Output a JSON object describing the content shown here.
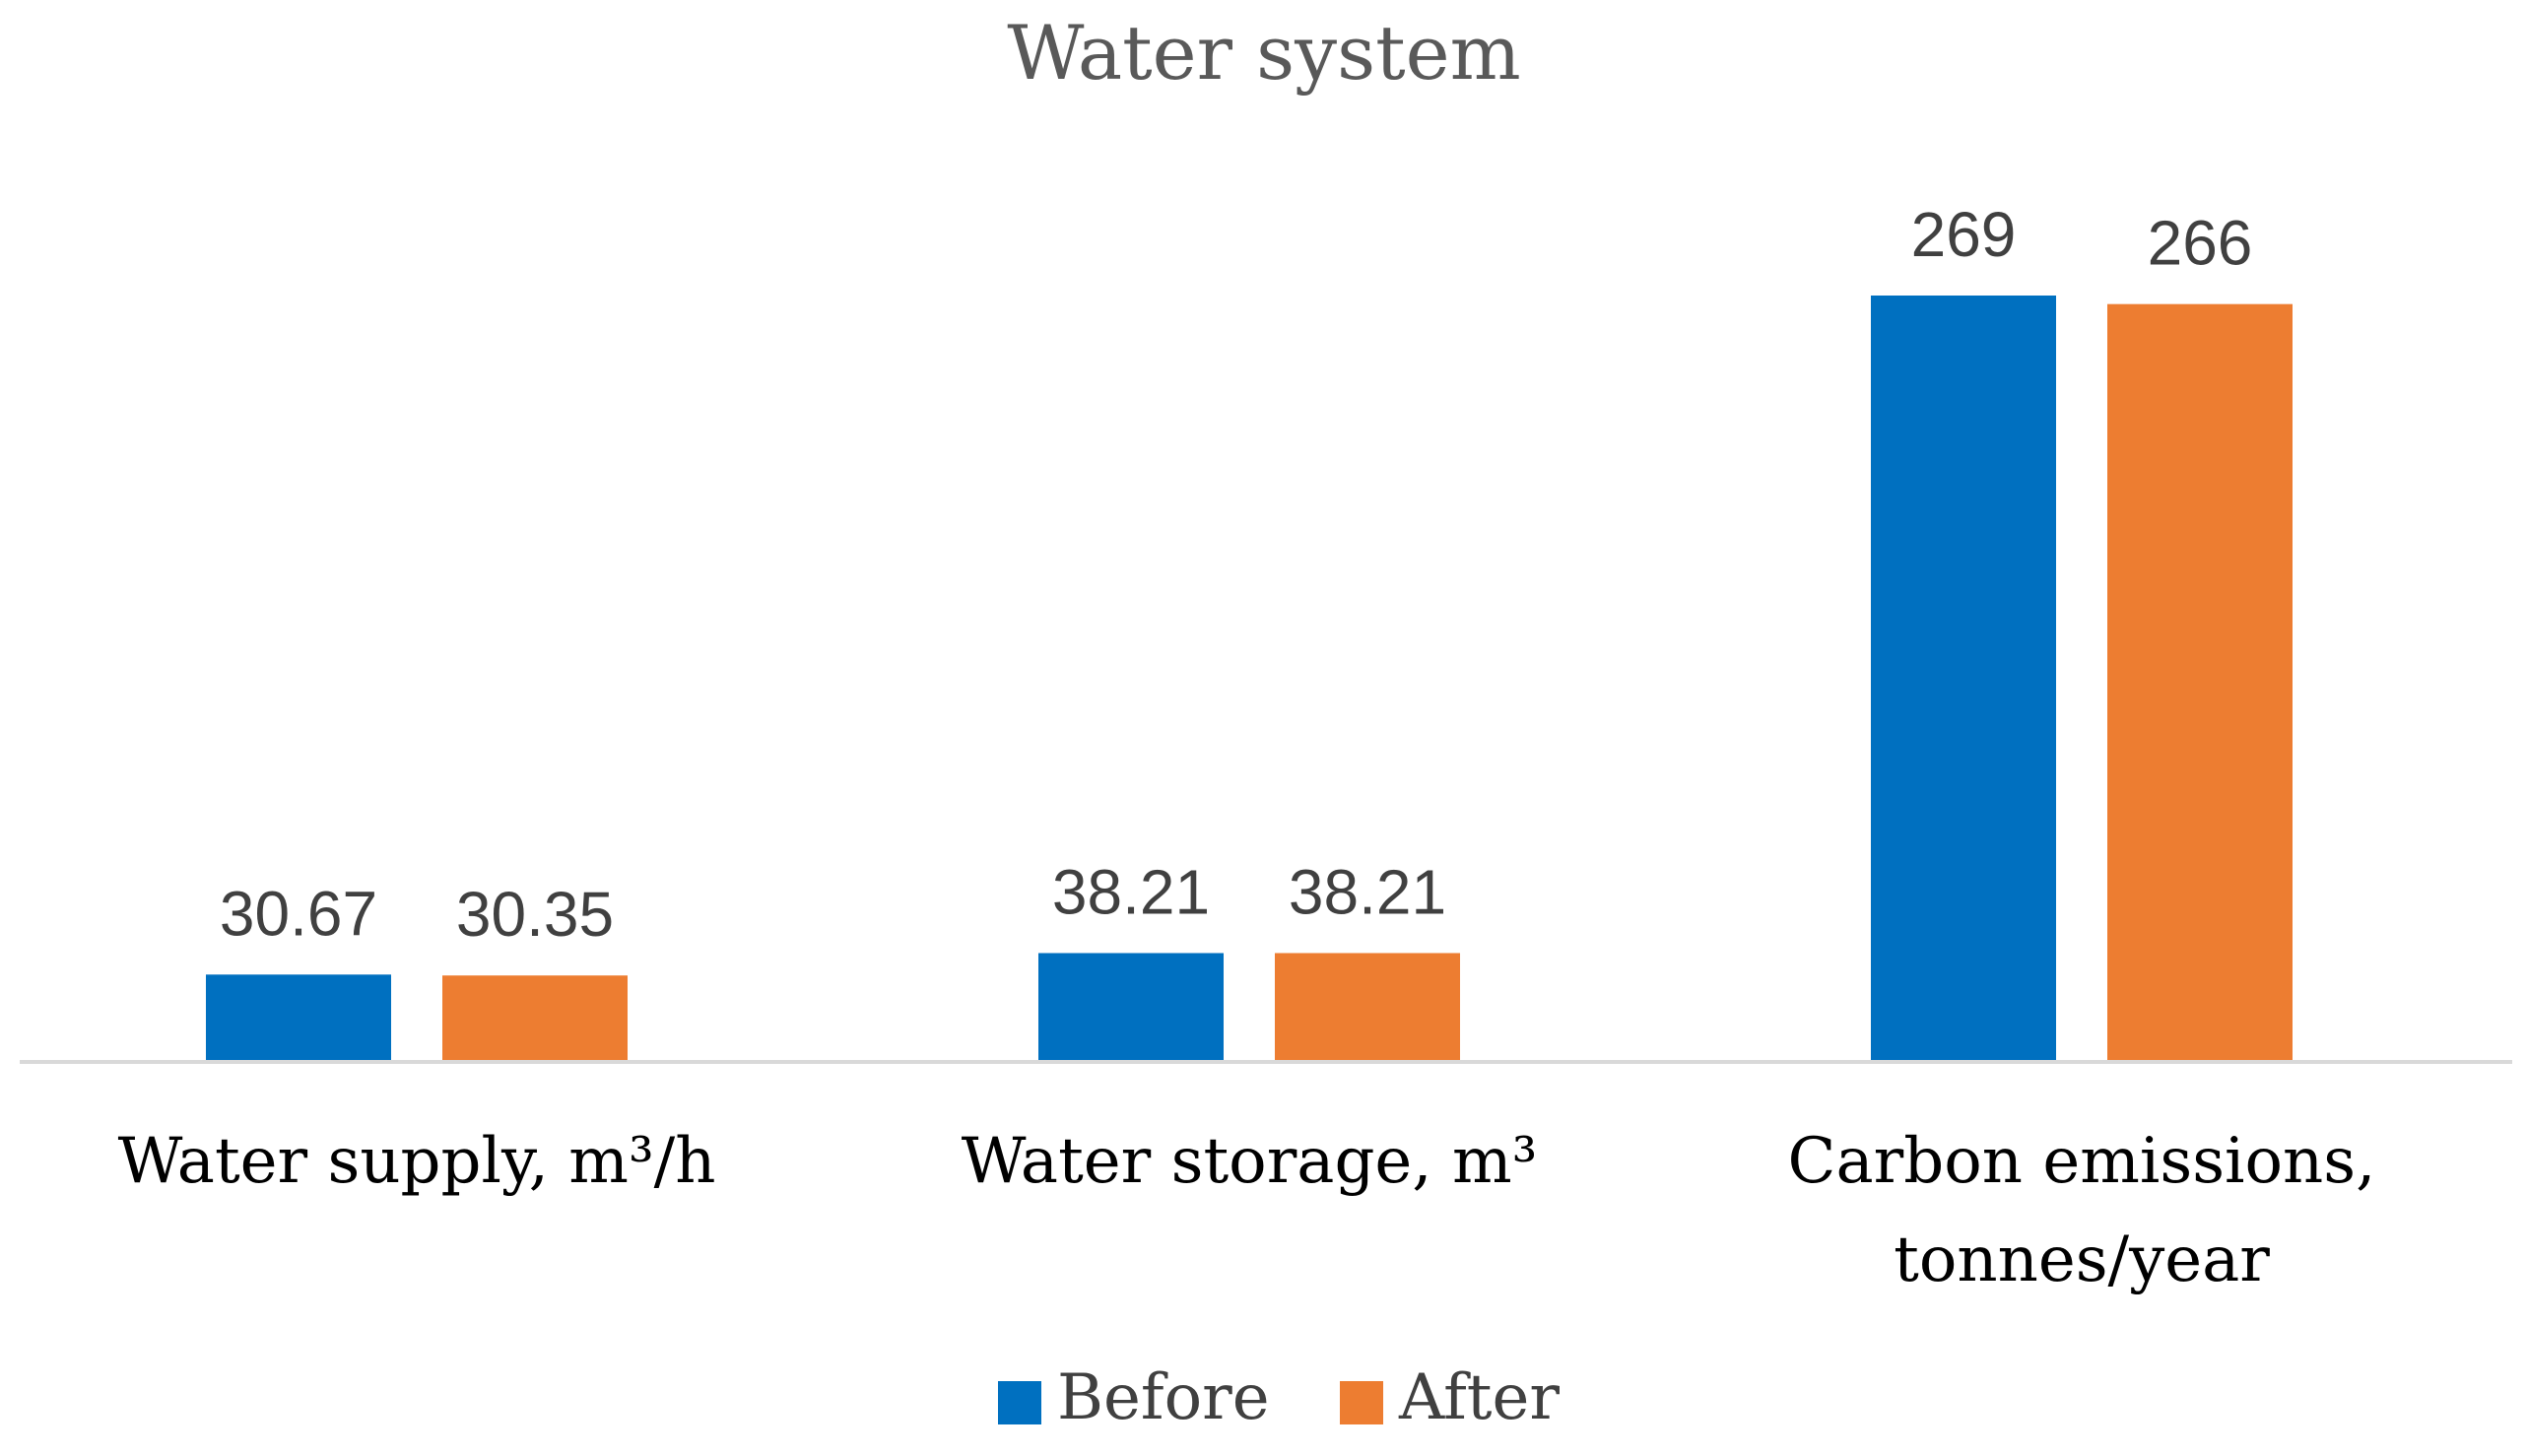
{
  "chart_data": {
    "type": "bar",
    "title": "Water system",
    "categories": [
      {
        "label": "Water supply, m³/h",
        "lines": [
          "Water supply, m³/h"
        ]
      },
      {
        "label": "Water storage, m³",
        "lines": [
          "Water storage, m³"
        ]
      },
      {
        "label": "Carbon emissions, tonnes/year",
        "lines": [
          "Carbon emissions,",
          "tonnes/year"
        ]
      }
    ],
    "series": [
      {
        "name": "Before",
        "color": "#0070C0",
        "values": [
          30.67,
          38.21,
          269
        ],
        "labels": [
          "30.67",
          "38.21",
          "269"
        ]
      },
      {
        "name": "After",
        "color": "#ED7D31",
        "values": [
          30.35,
          38.21,
          266
        ],
        "labels": [
          "30.35",
          "38.21",
          "266"
        ]
      }
    ],
    "ylim": [
      0,
      269
    ],
    "grid": false,
    "yaxis_visible": false,
    "legend_position": "bottom",
    "axis_color": "#D9D9D9"
  }
}
